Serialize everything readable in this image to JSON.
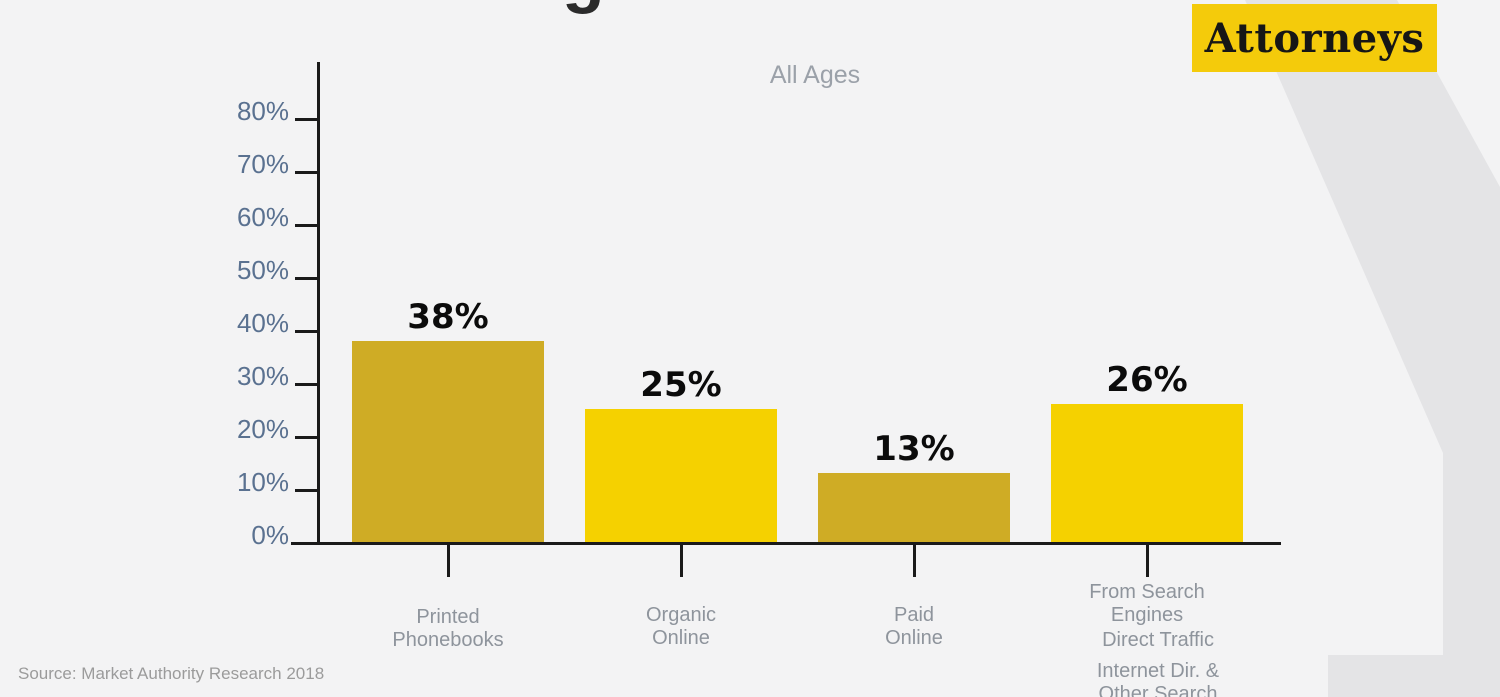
{
  "page": {
    "background": "#f3f3f4",
    "decoration_color": "#e4e4e6",
    "title_fragment": "g"
  },
  "banner": {
    "label": "Attorneys",
    "bg": "#F4CB0B",
    "text_color": "#161616"
  },
  "source": {
    "label": "Source: Market Authority Research 2018"
  },
  "chart_data": {
    "type": "bar",
    "title": "All Ages",
    "categories": [
      "Printed Phonebooks",
      "Organic Online",
      "Paid Online",
      "From Search Engines"
    ],
    "category_lines": [
      [
        "Printed",
        "Phonebooks"
      ],
      [
        "Organic",
        "Online"
      ],
      [
        "Paid",
        "Online"
      ],
      [
        "From Search",
        "Engines"
      ]
    ],
    "values": [
      38,
      25,
      13,
      26
    ],
    "value_labels": [
      "38%",
      "25%",
      "13%",
      "26%"
    ],
    "bar_colors": [
      "#CFAC25",
      "#F5D100",
      "#CFAC25",
      "#F5D100"
    ],
    "y_tick_labels": [
      "0%",
      "10%",
      "20%",
      "30%",
      "40%",
      "50%",
      "60%",
      "70%",
      "80%"
    ],
    "ylim": [
      0,
      80
    ],
    "grid": false,
    "legend": "none",
    "extra_x_annotations": [
      {
        "lines": [
          "Direct Traffic"
        ]
      },
      {
        "lines": [
          "Internet Dir. &",
          "Other Search"
        ]
      }
    ],
    "axis_color": "#1a1a1a",
    "y_label_color": "#5a7190",
    "category_label_color": "#8e949c",
    "value_label_color": "#0b0b0b"
  }
}
